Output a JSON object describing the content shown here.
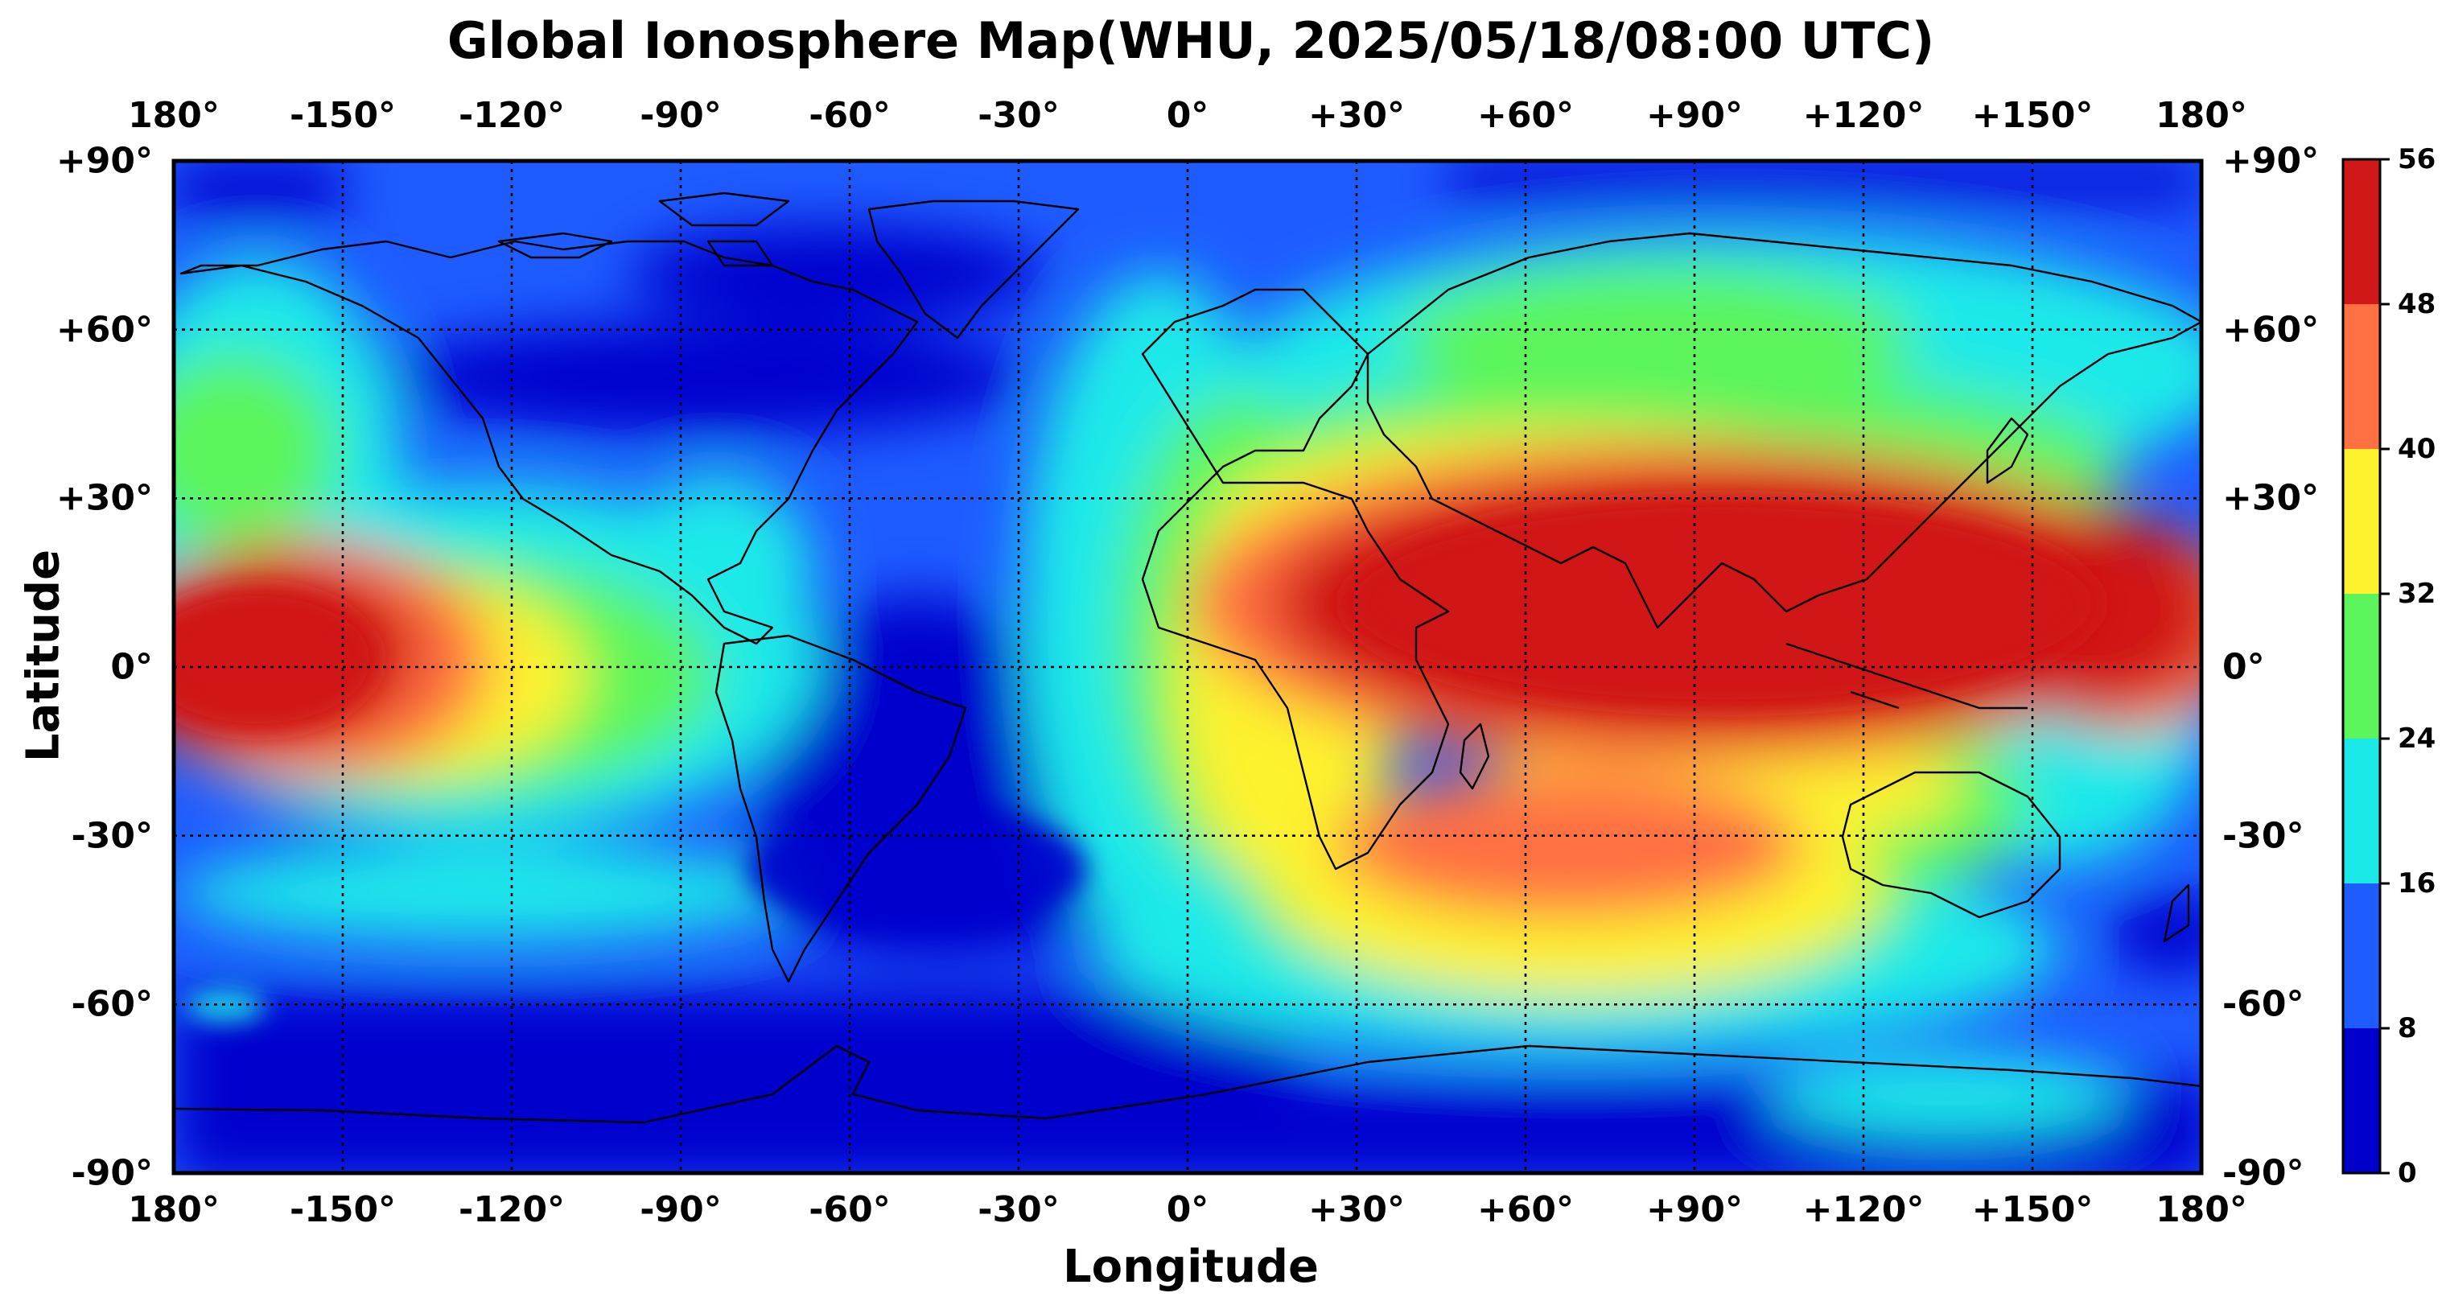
{
  "title": "Global Ionosphere Map(WHU, 2025/05/18/08:00 UTC)",
  "xlabel": "Longitude",
  "ylabel": "Latitude",
  "x_ticks": [
    "180°",
    "-150°",
    "-120°",
    "-90°",
    "-60°",
    "-30°",
    "0°",
    "+30°",
    "+60°",
    "+90°",
    "+120°",
    "+150°",
    "180°"
  ],
  "y_ticks": [
    "+90°",
    "+60°",
    "+30°",
    "0°",
    "-30°",
    "-60°",
    "-90°"
  ],
  "colorbar_ticks": [
    "56",
    "48",
    "40",
    "32",
    "24",
    "16",
    "8",
    "0"
  ],
  "chart_data": {
    "type": "heatmap",
    "title": "Global Ionosphere Map(WHU, 2025/05/18/08:00 UTC)",
    "xlabel": "Longitude",
    "ylabel": "Latitude",
    "xlim": [
      -180,
      180
    ],
    "ylim": [
      -90,
      90
    ],
    "grid": true,
    "colorbar": {
      "levels": [
        0,
        8,
        16,
        24,
        32,
        40,
        48,
        56
      ],
      "colors": [
        "#0000cd",
        "#1e5cff",
        "#1be9e9",
        "#5cf55c",
        "#fdf22d",
        "#ff7043",
        "#d01818"
      ]
    },
    "approximate_regions": [
      {
        "description": "equatorial anomaly peak over Africa/Asia",
        "lon_range": [
          15,
          180
        ],
        "lat_range": [
          -18,
          35
        ],
        "value_range": [
          48,
          56
        ]
      },
      {
        "description": "secondary peak over central Pacific",
        "lon_range": [
          -180,
          -130
        ],
        "lat_range": [
          -10,
          25
        ],
        "value_range": [
          48,
          56
        ]
      },
      {
        "description": "southern crest over Indian Ocean",
        "lon_range": [
          30,
          110
        ],
        "lat_range": [
          -60,
          -25
        ],
        "value_range": [
          32,
          48
        ]
      },
      {
        "description": "low TEC over South Atlantic and Americas",
        "lon_range": [
          -80,
          -30
        ],
        "lat_range": [
          -45,
          0
        ],
        "value_range": [
          0,
          8
        ]
      },
      {
        "description": "polar lows",
        "lon_range": [
          -180,
          180
        ],
        "lat_range": [
          -90,
          -70
        ],
        "value_range": [
          0,
          8
        ]
      }
    ]
  }
}
